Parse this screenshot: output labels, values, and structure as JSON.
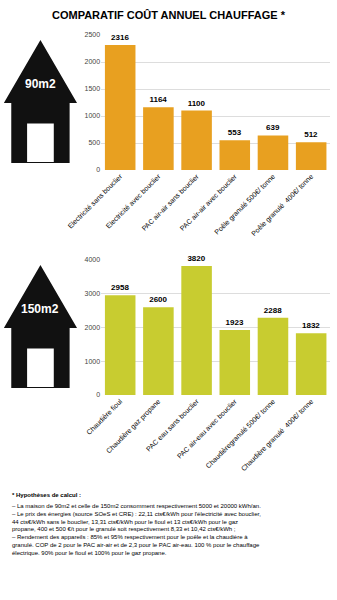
{
  "title": "COMPARATIF COÛT ANNUEL CHAUFFAGE *",
  "chart_data": [
    {
      "type": "bar",
      "annotations": [
        {
          "text": "90m2",
          "color": "#111111"
        }
      ],
      "categories": [
        "Electricité sans bouclier",
        "Electricité avec bouclier",
        "PAC air-air sans bouclier",
        "PAC air-air avec bouclier",
        "Poêle granulé 500€/ tonne",
        "Poêle granulé  400€/ tonne"
      ],
      "values": [
        2316,
        1164,
        1100,
        553,
        639,
        512
      ],
      "color": "#E8A020",
      "ylim": [
        0,
        2500
      ],
      "yticks": [
        0,
        500,
        1000,
        1500,
        2000,
        2500
      ],
      "grid": true,
      "data_labels": true
    },
    {
      "type": "bar",
      "annotations": [
        {
          "text": "150m2",
          "color": "#111111"
        }
      ],
      "categories": [
        "Chaudière fioul",
        "Chaudière gaz propane",
        "PAC eau sans bouclier",
        "PAC air-eau avec bouclier",
        "Chaudièregranulé 500€/ tonne",
        "Chaudière granulé  400€/ tonne"
      ],
      "values": [
        2958,
        2600,
        3820,
        1923,
        2288,
        1832
      ],
      "color": "#C8CC30",
      "ylim": [
        0,
        4000
      ],
      "yticks": [
        0,
        1000,
        2000,
        3000,
        4000
      ],
      "grid": true,
      "data_labels": true
    }
  ],
  "annotations": [
    "* Hypothèses de calcul :",
    "– La maison de 90m2 et celle de 150m2 consomment respectivement 5000 et 20000 kWh/an.\n– Le prix des énergies (source SOeS et CRE) : 22,11 cts€/kWh pour l'électricité avec bouclier,\n44 cts€/kWh sans le bouclier, 13,31 cts€/kWh pour le fioul et 13 cts€/kWh pour le gaz\npropane, 400 et 500 €/t pour le granulé soit respectivement 8,33 et 10,42 cts€/kWh ;\n– Rendement des appareils : 85% et 95% respectivement pour le poêle et la chaudière à\ngranulé. COP de 2 pour le PAC air-air et de 2,3 pour le PAC air-eau. 100 % pour le chauffage\nélectrique. 90% pour le fioul et 100% pour le gaz propane."
  ]
}
